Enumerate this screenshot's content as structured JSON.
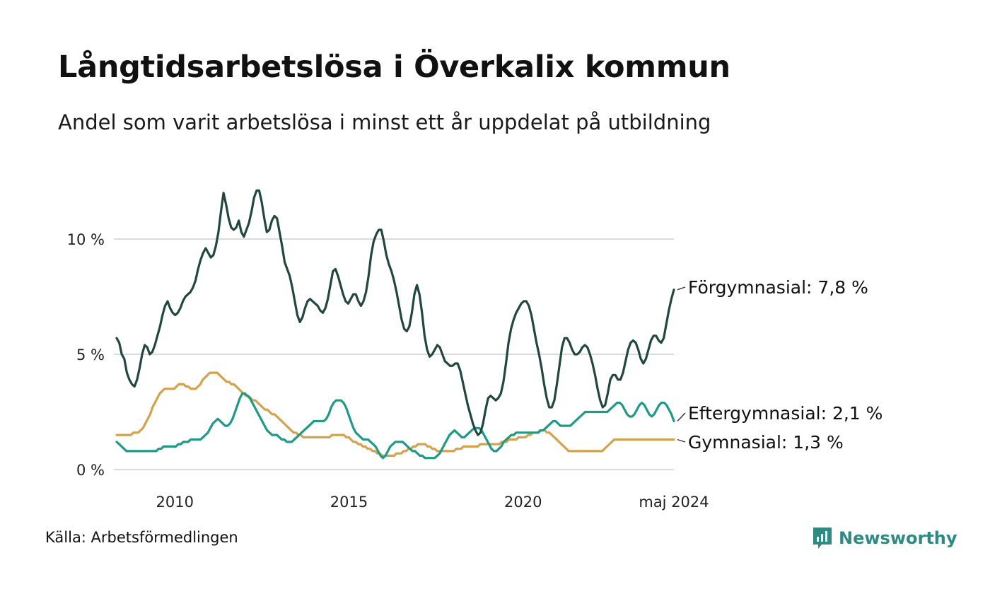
{
  "title": "Långtidsarbetslösa i Överkalix kommun",
  "subtitle": "Andel som varit arbetslösa i minst ett år uppdelat på utbildning",
  "source": "Källa: Arbetsförmedlingen",
  "brand": {
    "name": "Newsworthy",
    "icon": "newsworthy-logo-icon",
    "color": "#2f8a84"
  },
  "chart_data": {
    "type": "line",
    "x_start": 2008.33,
    "x_end": 2024.33,
    "xlim": [
      2008.33,
      2024.33
    ],
    "ylim": [
      0,
      12
    ],
    "y_ticks": [
      {
        "value": 0,
        "label": "0 %"
      },
      {
        "value": 5,
        "label": "5 %"
      },
      {
        "value": 10,
        "label": "10 %"
      }
    ],
    "x_ticks": [
      {
        "value": 2010,
        "label": "2010"
      },
      {
        "value": 2015,
        "label": "2015"
      },
      {
        "value": 2020,
        "label": "2020"
      },
      {
        "value": 2024.33,
        "label": "maj 2024"
      }
    ],
    "grid": true,
    "series": [
      {
        "name": "Förgymnasial",
        "end_label": "Förgymnasial: 7,8 %",
        "color": "#22473f",
        "values": [
          5.7,
          5.5,
          5.0,
          4.8,
          4.2,
          3.9,
          3.7,
          3.6,
          3.9,
          4.4,
          5.0,
          5.4,
          5.3,
          5.0,
          5.1,
          5.4,
          5.8,
          6.2,
          6.7,
          7.1,
          7.3,
          7.0,
          6.8,
          6.7,
          6.8,
          7.0,
          7.3,
          7.5,
          7.6,
          7.7,
          7.9,
          8.2,
          8.7,
          9.1,
          9.4,
          9.6,
          9.4,
          9.2,
          9.3,
          9.7,
          10.3,
          11.2,
          12.0,
          11.5,
          10.9,
          10.5,
          10.4,
          10.5,
          10.8,
          10.3,
          10.1,
          10.4,
          10.7,
          11.2,
          11.8,
          12.1,
          12.1,
          11.6,
          10.9,
          10.3,
          10.4,
          10.8,
          11.0,
          10.9,
          10.3,
          9.7,
          9.0,
          8.7,
          8.4,
          7.9,
          7.3,
          6.7,
          6.4,
          6.6,
          7.0,
          7.3,
          7.4,
          7.3,
          7.2,
          7.1,
          6.9,
          6.8,
          7.0,
          7.4,
          8.0,
          8.6,
          8.7,
          8.4,
          8.0,
          7.6,
          7.3,
          7.2,
          7.4,
          7.6,
          7.6,
          7.3,
          7.1,
          7.3,
          7.7,
          8.4,
          9.3,
          9.9,
          10.2,
          10.4,
          10.4,
          9.9,
          9.3,
          8.9,
          8.6,
          8.2,
          7.7,
          7.1,
          6.5,
          6.1,
          6.0,
          6.2,
          6.8,
          7.6,
          8.0,
          7.6,
          6.8,
          5.8,
          5.2,
          4.9,
          5.0,
          5.2,
          5.4,
          5.3,
          5.0,
          4.7,
          4.6,
          4.5,
          4.5,
          4.6,
          4.6,
          4.3,
          3.8,
          3.3,
          2.8,
          2.4,
          2.0,
          1.7,
          1.5,
          1.6,
          2.0,
          2.6,
          3.1,
          3.2,
          3.1,
          3.0,
          3.1,
          3.3,
          3.8,
          4.6,
          5.5,
          6.1,
          6.5,
          6.8,
          7.0,
          7.2,
          7.3,
          7.3,
          7.1,
          6.7,
          6.1,
          5.5,
          5.0,
          4.4,
          3.7,
          3.1,
          2.7,
          2.7,
          3.0,
          3.7,
          4.5,
          5.3,
          5.7,
          5.7,
          5.5,
          5.2,
          5.0,
          5.0,
          5.1,
          5.3,
          5.4,
          5.3,
          5.0,
          4.6,
          4.1,
          3.5,
          3.0,
          2.7,
          2.8,
          3.3,
          3.9,
          4.1,
          4.1,
          3.9,
          3.9,
          4.2,
          4.7,
          5.2,
          5.5,
          5.6,
          5.5,
          5.2,
          4.8,
          4.6,
          4.8,
          5.2,
          5.6,
          5.8,
          5.8,
          5.6,
          5.5,
          5.7,
          6.3,
          6.9,
          7.4,
          7.8
        ]
      },
      {
        "name": "Eftergymnasial",
        "end_label": "Eftergymnasial: 2,1 %",
        "color": "#1f9a88",
        "values": [
          1.2,
          1.1,
          1.0,
          0.9,
          0.8,
          0.8,
          0.8,
          0.8,
          0.8,
          0.8,
          0.8,
          0.8,
          0.8,
          0.8,
          0.8,
          0.8,
          0.8,
          0.9,
          0.9,
          1.0,
          1.0,
          1.0,
          1.0,
          1.0,
          1.0,
          1.1,
          1.1,
          1.2,
          1.2,
          1.2,
          1.3,
          1.3,
          1.3,
          1.3,
          1.3,
          1.4,
          1.5,
          1.6,
          1.8,
          2.0,
          2.1,
          2.2,
          2.1,
          2.0,
          1.9,
          1.9,
          2.0,
          2.2,
          2.5,
          2.8,
          3.1,
          3.3,
          3.3,
          3.2,
          3.1,
          2.9,
          2.7,
          2.5,
          2.3,
          2.1,
          1.9,
          1.7,
          1.6,
          1.5,
          1.5,
          1.5,
          1.4,
          1.3,
          1.3,
          1.2,
          1.2,
          1.2,
          1.3,
          1.4,
          1.5,
          1.6,
          1.7,
          1.8,
          1.9,
          2.0,
          2.1,
          2.1,
          2.1,
          2.1,
          2.1,
          2.2,
          2.4,
          2.7,
          2.9,
          3.0,
          3.0,
          3.0,
          2.9,
          2.7,
          2.4,
          2.1,
          1.8,
          1.6,
          1.5,
          1.4,
          1.3,
          1.3,
          1.3,
          1.2,
          1.1,
          1.0,
          0.8,
          0.6,
          0.5,
          0.6,
          0.8,
          1.0,
          1.1,
          1.2,
          1.2,
          1.2,
          1.2,
          1.1,
          1.0,
          0.9,
          0.8,
          0.8,
          0.7,
          0.6,
          0.6,
          0.5,
          0.5,
          0.5,
          0.5,
          0.5,
          0.6,
          0.7,
          0.9,
          1.1,
          1.3,
          1.5,
          1.6,
          1.7,
          1.6,
          1.5,
          1.4,
          1.4,
          1.5,
          1.6,
          1.7,
          1.8,
          1.8,
          1.8,
          1.7,
          1.5,
          1.3,
          1.1,
          0.9,
          0.8,
          0.8,
          0.9,
          1.0,
          1.2,
          1.3,
          1.4,
          1.5,
          1.5,
          1.6,
          1.6,
          1.6,
          1.6,
          1.6,
          1.6,
          1.6,
          1.6,
          1.6,
          1.6,
          1.7,
          1.7,
          1.8,
          1.9,
          2.0,
          2.1,
          2.1,
          2.0,
          1.9,
          1.9,
          1.9,
          1.9,
          1.9,
          2.0,
          2.1,
          2.2,
          2.3,
          2.4,
          2.5,
          2.5,
          2.5,
          2.5,
          2.5,
          2.5,
          2.5,
          2.5,
          2.5,
          2.5,
          2.6,
          2.7,
          2.8,
          2.9,
          2.9,
          2.8,
          2.6,
          2.4,
          2.3,
          2.3,
          2.4,
          2.6,
          2.8,
          2.9,
          2.8,
          2.6,
          2.4,
          2.3,
          2.4,
          2.6,
          2.8,
          2.9,
          2.9,
          2.8,
          2.6,
          2.4,
          2.1
        ]
      },
      {
        "name": "Gymnasial",
        "end_label": "Gymnasial: 1,3 %",
        "color": "#d4a24c",
        "values": [
          1.5,
          1.5,
          1.5,
          1.5,
          1.5,
          1.5,
          1.5,
          1.6,
          1.6,
          1.6,
          1.7,
          1.8,
          2.0,
          2.2,
          2.4,
          2.7,
          2.9,
          3.1,
          3.3,
          3.4,
          3.5,
          3.5,
          3.5,
          3.5,
          3.5,
          3.6,
          3.7,
          3.7,
          3.7,
          3.6,
          3.6,
          3.5,
          3.5,
          3.5,
          3.6,
          3.7,
          3.9,
          4.0,
          4.1,
          4.2,
          4.2,
          4.2,
          4.2,
          4.1,
          4.0,
          3.9,
          3.8,
          3.8,
          3.7,
          3.7,
          3.6,
          3.5,
          3.4,
          3.3,
          3.2,
          3.2,
          3.1,
          3.0,
          3.0,
          2.9,
          2.8,
          2.7,
          2.6,
          2.6,
          2.5,
          2.4,
          2.4,
          2.3,
          2.2,
          2.1,
          2.0,
          1.9,
          1.8,
          1.7,
          1.6,
          1.6,
          1.5,
          1.5,
          1.4,
          1.4,
          1.4,
          1.4,
          1.4,
          1.4,
          1.4,
          1.4,
          1.4,
          1.4,
          1.4,
          1.4,
          1.5,
          1.5,
          1.5,
          1.5,
          1.5,
          1.5,
          1.4,
          1.4,
          1.3,
          1.2,
          1.2,
          1.1,
          1.1,
          1.0,
          1.0,
          0.9,
          0.9,
          0.8,
          0.8,
          0.7,
          0.7,
          0.6,
          0.6,
          0.6,
          0.6,
          0.6,
          0.6,
          0.7,
          0.7,
          0.7,
          0.8,
          0.8,
          0.9,
          0.9,
          1.0,
          1.0,
          1.1,
          1.1,
          1.1,
          1.1,
          1.0,
          1.0,
          0.9,
          0.9,
          0.8,
          0.8,
          0.8,
          0.8,
          0.8,
          0.8,
          0.8,
          0.8,
          0.9,
          0.9,
          0.9,
          1.0,
          1.0,
          1.0,
          1.0,
          1.0,
          1.0,
          1.0,
          1.1,
          1.1,
          1.1,
          1.1,
          1.1,
          1.1,
          1.1,
          1.1,
          1.1,
          1.2,
          1.2,
          1.2,
          1.3,
          1.3,
          1.3,
          1.3,
          1.4,
          1.4,
          1.4,
          1.4,
          1.5,
          1.5,
          1.6,
          1.6,
          1.6,
          1.7,
          1.7,
          1.7,
          1.6,
          1.6,
          1.5,
          1.4,
          1.3,
          1.2,
          1.1,
          1.0,
          0.9,
          0.8,
          0.8,
          0.8,
          0.8,
          0.8,
          0.8,
          0.8,
          0.8,
          0.8,
          0.8,
          0.8,
          0.8,
          0.8,
          0.8,
          0.8,
          0.9,
          1.0,
          1.1,
          1.2,
          1.3,
          1.3,
          1.3,
          1.3,
          1.3,
          1.3,
          1.3,
          1.3,
          1.3,
          1.3,
          1.3,
          1.3,
          1.3,
          1.3,
          1.3,
          1.3,
          1.3,
          1.3,
          1.3,
          1.3,
          1.3,
          1.3,
          1.3,
          1.3,
          1.3,
          1.3
        ]
      }
    ]
  }
}
